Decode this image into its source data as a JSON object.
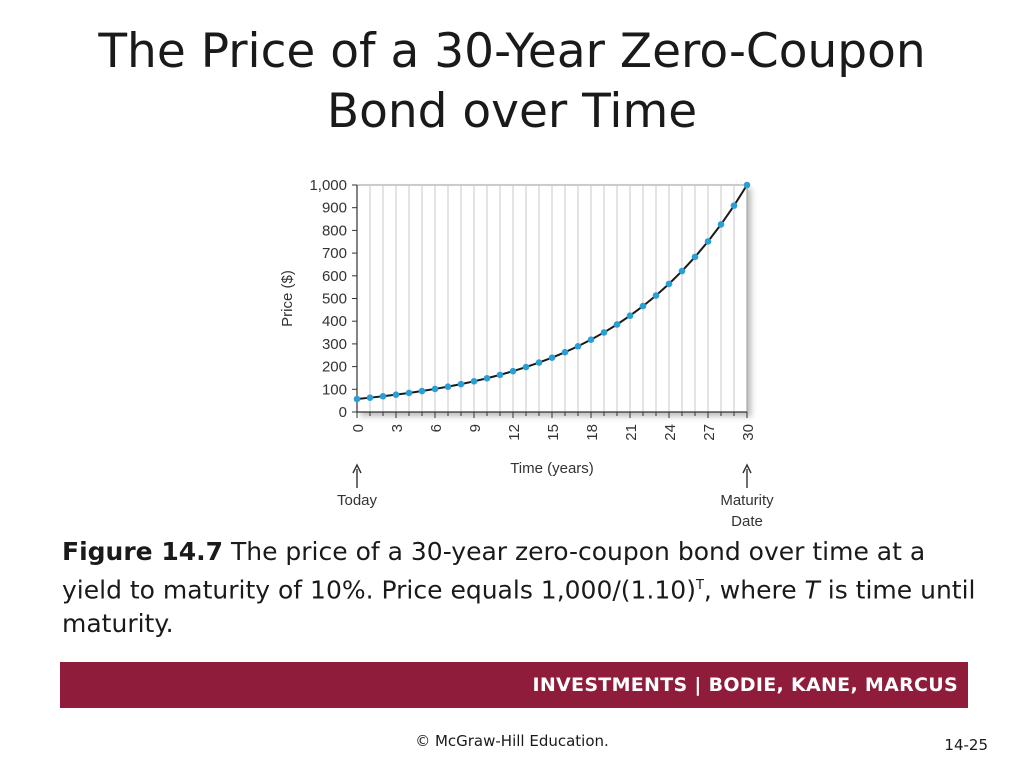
{
  "slide": {
    "title_line1": "The Price of a 30-Year Zero-Coupon",
    "title_line2": "Bond over Time"
  },
  "chart_data": {
    "type": "line",
    "xlabel": "Time (years)",
    "ylabel": "Price ($)",
    "xlim": [
      0,
      30
    ],
    "ylim": [
      0,
      1000
    ],
    "x_ticks": [
      0,
      3,
      6,
      9,
      12,
      15,
      18,
      21,
      24,
      27,
      30
    ],
    "y_ticks": [
      0,
      100,
      200,
      300,
      400,
      500,
      600,
      700,
      800,
      900,
      1000
    ],
    "y_tick_labels": [
      "0",
      "100",
      "200",
      "300",
      "400",
      "500",
      "600",
      "700",
      "800",
      "900",
      "1,000"
    ],
    "grid": "vertical",
    "series": [
      {
        "color": "#2a9fd6",
        "x": [
          0,
          1,
          2,
          3,
          4,
          5,
          6,
          7,
          8,
          9,
          10,
          11,
          12,
          13,
          14,
          15,
          16,
          17,
          18,
          19,
          20,
          21,
          22,
          23,
          24,
          25,
          26,
          27,
          28,
          29,
          30
        ],
        "values": [
          57.31,
          63.04,
          69.34,
          76.28,
          83.91,
          92.3,
          101.53,
          111.68,
          122.85,
          135.13,
          148.64,
          163.51,
          179.86,
          197.84,
          217.63,
          239.39,
          263.33,
          289.66,
          318.63,
          350.49,
          385.54,
          424.1,
          466.51,
          513.16,
          564.47,
          620.92,
          683.01,
          751.31,
          826.45,
          909.09,
          1000
        ]
      }
    ],
    "curve_color": "#1a1a1a",
    "annotations": [
      {
        "x": 0,
        "label_lines": [
          "Today"
        ]
      },
      {
        "x": 30,
        "label_lines": [
          "Maturity",
          "Date"
        ]
      }
    ]
  },
  "caption": {
    "figure_label": "Figure 14.7",
    "text_part1": " The price of a 30-year zero-coupon bond over time at a yield to maturity of 10%. Price equals 1,000/(1.10)",
    "superscript": "T",
    "text_part2": ", where ",
    "italic_var": "T",
    "text_part3": " is time until maturity."
  },
  "footer": {
    "brand_text": "INVESTMENTS | BODIE, KANE, MARCUS",
    "bar_color": "#8e1c3a",
    "copyright": "© McGraw-Hill Education.",
    "page_number": "14-25"
  }
}
